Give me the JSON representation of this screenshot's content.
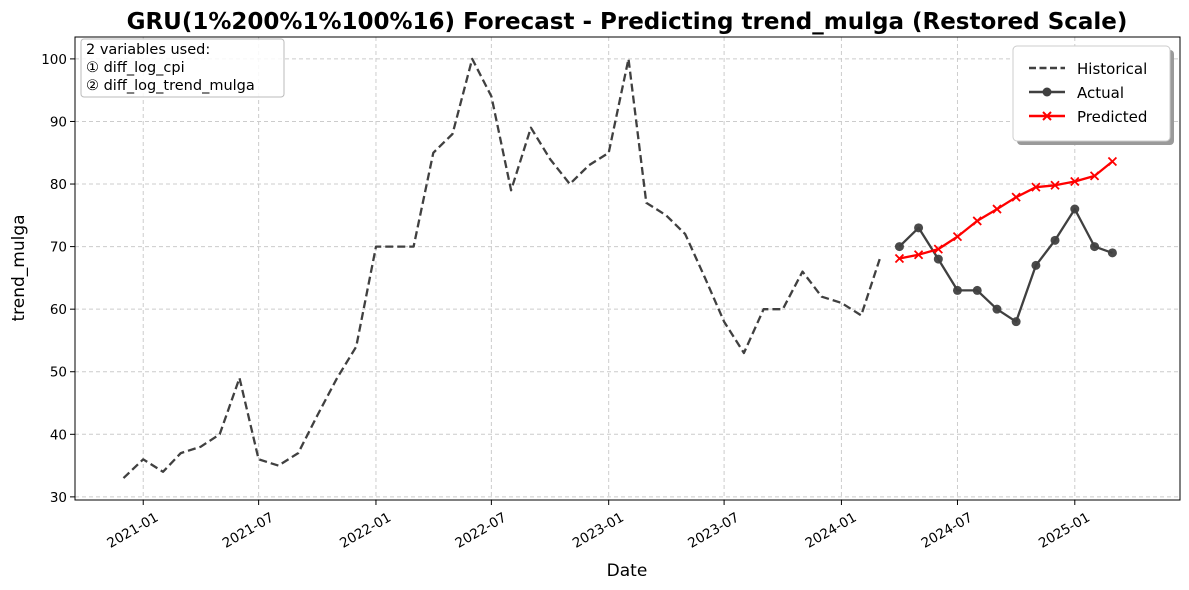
{
  "chart_data": {
    "type": "line",
    "title": "GRU(1%200%1%100%16) Forecast - Predicting trend_mulga (Restored Scale)",
    "xlabel": "Date",
    "ylabel": "trend_mulga",
    "ylim": [
      29.5,
      103.5
    ],
    "xlim": [
      "2020-09-16",
      "2025-06-15"
    ],
    "grid": true,
    "legend_position": "top-right",
    "x_ticks": [
      "2021-01",
      "2021-07",
      "2022-01",
      "2022-07",
      "2023-01",
      "2023-07",
      "2024-01",
      "2024-07",
      "2025-01"
    ],
    "y_ticks": [
      30,
      40,
      50,
      60,
      70,
      80,
      90,
      100
    ],
    "annotation": {
      "lines": [
        "2 variables used:",
        "① diff_log_cpi",
        "② diff_log_trend_mulga"
      ],
      "position": "top-left"
    },
    "series": [
      {
        "name": "Historical",
        "color": "#404040",
        "style": "dashed",
        "marker": "none",
        "points": [
          [
            "2020-12-01",
            33
          ],
          [
            "2021-01-01",
            36
          ],
          [
            "2021-02-01",
            34
          ],
          [
            "2021-03-01",
            37
          ],
          [
            "2021-04-01",
            38
          ],
          [
            "2021-05-01",
            40
          ],
          [
            "2021-06-01",
            49
          ],
          [
            "2021-07-01",
            36
          ],
          [
            "2021-08-01",
            35
          ],
          [
            "2021-09-01",
            37
          ],
          [
            "2021-10-01",
            43
          ],
          [
            "2021-11-01",
            49
          ],
          [
            "2021-12-01",
            54
          ],
          [
            "2022-01-01",
            70
          ],
          [
            "2022-02-01",
            70
          ],
          [
            "2022-03-01",
            70
          ],
          [
            "2022-04-01",
            85
          ],
          [
            "2022-05-01",
            88
          ],
          [
            "2022-06-01",
            100
          ],
          [
            "2022-07-01",
            94
          ],
          [
            "2022-08-01",
            79
          ],
          [
            "2022-09-01",
            89
          ],
          [
            "2022-10-01",
            84
          ],
          [
            "2022-11-01",
            80
          ],
          [
            "2022-12-01",
            83
          ],
          [
            "2023-01-01",
            85
          ],
          [
            "2023-02-01",
            100
          ],
          [
            "2023-03-01",
            77
          ],
          [
            "2023-04-01",
            75
          ],
          [
            "2023-05-01",
            72
          ],
          [
            "2023-06-01",
            65
          ],
          [
            "2023-07-01",
            58
          ],
          [
            "2023-08-01",
            53
          ],
          [
            "2023-09-01",
            60
          ],
          [
            "2023-10-01",
            60
          ],
          [
            "2023-11-01",
            66
          ],
          [
            "2023-12-01",
            62
          ],
          [
            "2024-01-01",
            61
          ],
          [
            "2024-02-01",
            59
          ],
          [
            "2024-03-01",
            68
          ]
        ]
      },
      {
        "name": "Actual",
        "color": "#404040",
        "style": "solid",
        "marker": "circle",
        "points": [
          [
            "2024-04-01",
            70
          ],
          [
            "2024-05-01",
            73
          ],
          [
            "2024-06-01",
            68
          ],
          [
            "2024-07-01",
            63
          ],
          [
            "2024-08-01",
            63
          ],
          [
            "2024-09-01",
            60
          ],
          [
            "2024-10-01",
            58
          ],
          [
            "2024-11-01",
            67
          ],
          [
            "2024-12-01",
            71
          ],
          [
            "2025-01-01",
            76
          ],
          [
            "2025-02-01",
            70
          ],
          [
            "2025-03-01",
            69
          ]
        ]
      },
      {
        "name": "Predicted",
        "color": "#ff0000",
        "style": "solid",
        "marker": "x",
        "points": [
          [
            "2024-04-01",
            68.1
          ],
          [
            "2024-05-01",
            68.7
          ],
          [
            "2024-06-01",
            69.6
          ],
          [
            "2024-07-01",
            71.6
          ],
          [
            "2024-08-01",
            74.1
          ],
          [
            "2024-09-01",
            76.0
          ],
          [
            "2024-10-01",
            77.9
          ],
          [
            "2024-11-01",
            79.5
          ],
          [
            "2024-12-01",
            79.8
          ],
          [
            "2025-01-01",
            80.4
          ],
          [
            "2025-02-01",
            81.3
          ],
          [
            "2025-03-01",
            83.6
          ]
        ]
      }
    ]
  }
}
